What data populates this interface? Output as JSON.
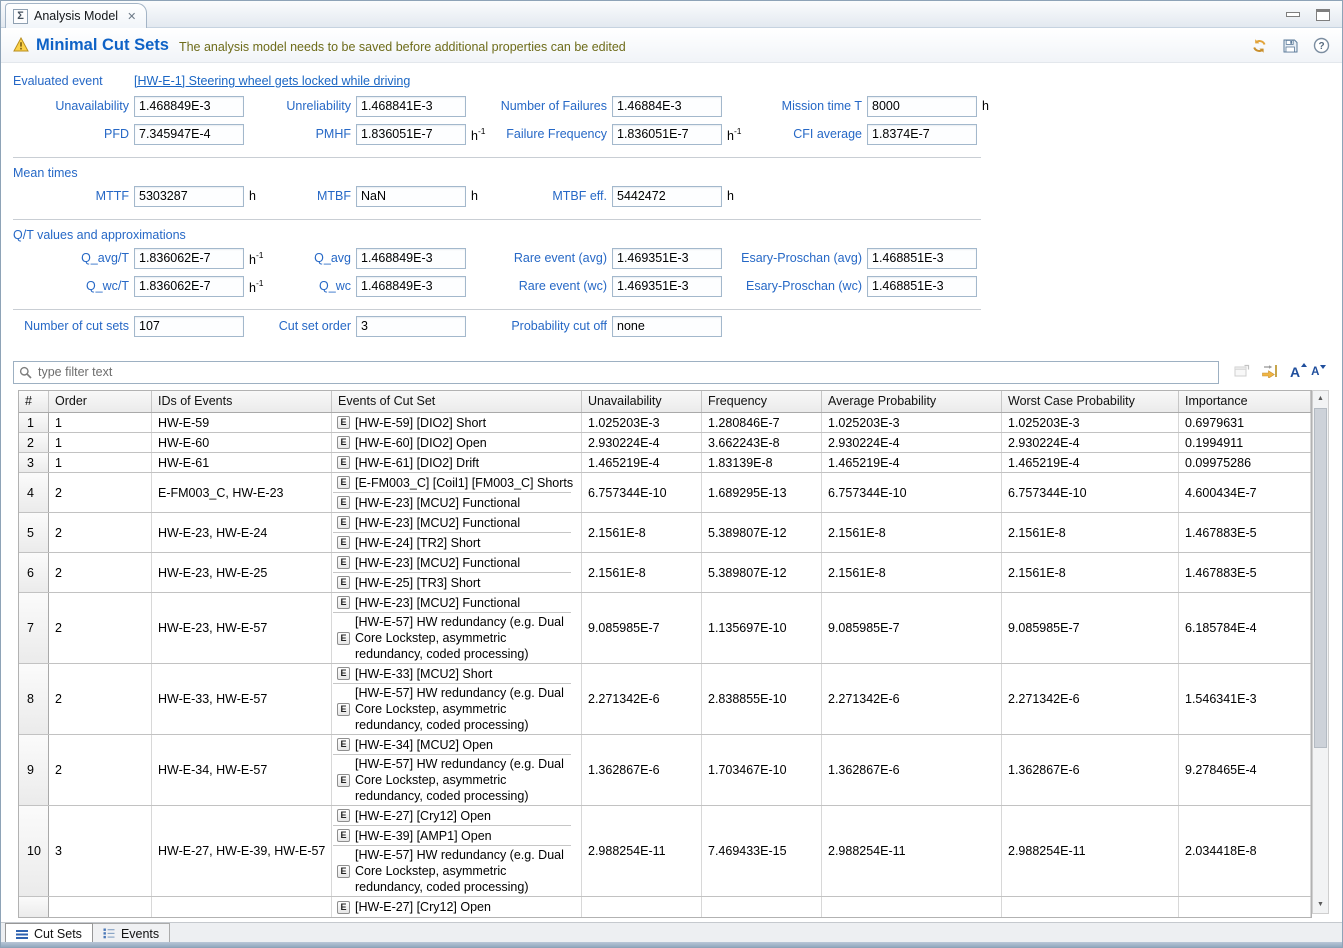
{
  "colors": {
    "accent_blue": "#0e62c6",
    "label_blue": "#2668c6",
    "link_blue": "#1a66c4",
    "warning_text": "#6e6c1a",
    "icon_orange": "#e2a33a"
  },
  "window": {
    "tab_title": "Analysis Model",
    "tab_icon": "Σ",
    "close_glyph": "✕"
  },
  "header": {
    "title": "Minimal Cut Sets",
    "message": "The analysis model needs to be saved before additional properties can be edited",
    "help_glyph": "?"
  },
  "evaluated_event": {
    "label": "Evaluated event",
    "value": "[HW-E-1] Steering wheel gets locked while driving"
  },
  "form": {
    "sections": [
      {
        "title": "",
        "rows": [
          [
            {
              "label": "Unavailability",
              "value": "1.468849E-3",
              "unit": "",
              "sup": ""
            },
            {
              "label": "Unreliability",
              "value": "1.468841E-3",
              "unit": "",
              "sup": ""
            },
            {
              "label": "Number of Failures",
              "value": "1.46884E-3",
              "unit": "",
              "sup": ""
            },
            {
              "label": "Mission time T",
              "value": "8000",
              "unit": "h",
              "sup": ""
            }
          ],
          [
            {
              "label": "PFD",
              "value": "7.345947E-4",
              "unit": "",
              "sup": ""
            },
            {
              "label": "PMHF",
              "value": "1.836051E-7",
              "unit": "h",
              "sup": "-1"
            },
            {
              "label": "Failure Frequency",
              "value": "1.836051E-7",
              "unit": "h",
              "sup": "-1"
            },
            {
              "label": "CFI average",
              "value": "1.8374E-7",
              "unit": "",
              "sup": ""
            }
          ]
        ]
      },
      {
        "title": "Mean times",
        "rows": [
          [
            {
              "label": "MTTF",
              "value": "5303287",
              "unit": "h",
              "sup": ""
            },
            {
              "label": "MTBF",
              "value": "NaN",
              "unit": "h",
              "sup": ""
            },
            {
              "label": "MTBF eff.",
              "value": "5442472",
              "unit": "h",
              "sup": ""
            }
          ]
        ]
      },
      {
        "title": "Q/T values and approximations",
        "rows": [
          [
            {
              "label": "Q_avg/T",
              "value": "1.836062E-7",
              "unit": "h",
              "sup": "-1"
            },
            {
              "label": "Q_avg",
              "value": "1.468849E-3",
              "unit": "",
              "sup": ""
            },
            {
              "label": "Rare event (avg)",
              "value": "1.469351E-3",
              "unit": "",
              "sup": ""
            },
            {
              "label": "Esary-Proschan (avg)",
              "value": "1.468851E-3",
              "unit": "",
              "sup": ""
            }
          ],
          [
            {
              "label": "Q_wc/T",
              "value": "1.836062E-7",
              "unit": "h",
              "sup": "-1"
            },
            {
              "label": "Q_wc",
              "value": "1.468849E-3",
              "unit": "",
              "sup": ""
            },
            {
              "label": "Rare event (wc)",
              "value": "1.469351E-3",
              "unit": "",
              "sup": ""
            },
            {
              "label": "Esary-Proschan (wc)",
              "value": "1.468851E-3",
              "unit": "",
              "sup": ""
            }
          ]
        ]
      },
      {
        "title": "",
        "rows": [
          [
            {
              "label": "Number of cut sets",
              "value": "107",
              "unit": "",
              "sup": ""
            },
            {
              "label": "Cut set order",
              "value": "3",
              "unit": "",
              "sup": ""
            },
            {
              "label": "Probability cut off",
              "value": "none",
              "unit": "",
              "sup": ""
            }
          ]
        ]
      }
    ]
  },
  "filter": {
    "placeholder": "type filter text",
    "font_increase": "A",
    "font_decrease": "A"
  },
  "table": {
    "event_badge": "E",
    "columns": [
      "#",
      "Order",
      "IDs of Events",
      "Events of Cut Set",
      "Unavailability",
      "Frequency",
      "Average Probability",
      "Worst Case Probability",
      "Importance"
    ],
    "rows": [
      {
        "num": "1",
        "order": "1",
        "ids": "HW-E-59",
        "events": [
          "[HW-E-59] [DIO2] Short"
        ],
        "unavailability": "1.025203E-3",
        "frequency": "1.280846E-7",
        "average_probability": "1.025203E-3",
        "worst_case_probability": "1.025203E-3",
        "importance": "0.6979631"
      },
      {
        "num": "2",
        "order": "1",
        "ids": "HW-E-60",
        "events": [
          "[HW-E-60] [DIO2] Open"
        ],
        "unavailability": "2.930224E-4",
        "frequency": "3.662243E-8",
        "average_probability": "2.930224E-4",
        "worst_case_probability": "2.930224E-4",
        "importance": "0.1994911"
      },
      {
        "num": "3",
        "order": "1",
        "ids": "HW-E-61",
        "events": [
          "[HW-E-61] [DIO2] Drift"
        ],
        "unavailability": "1.465219E-4",
        "frequency": "1.83139E-8",
        "average_probability": "1.465219E-4",
        "worst_case_probability": "1.465219E-4",
        "importance": "0.09975286"
      },
      {
        "num": "4",
        "order": "2",
        "ids": "E-FM003_C, HW-E-23",
        "events": [
          "[E-FM003_C] [Coil1] [FM003_C] Shorts",
          "[HW-E-23] [MCU2] Functional"
        ],
        "unavailability": "6.757344E-10",
        "frequency": "1.689295E-13",
        "average_probability": "6.757344E-10",
        "worst_case_probability": "6.757344E-10",
        "importance": "4.600434E-7"
      },
      {
        "num": "5",
        "order": "2",
        "ids": "HW-E-23, HW-E-24",
        "events": [
          "[HW-E-23] [MCU2] Functional",
          "[HW-E-24] [TR2] Short"
        ],
        "unavailability": "2.1561E-8",
        "frequency": "5.389807E-12",
        "average_probability": "2.1561E-8",
        "worst_case_probability": "2.1561E-8",
        "importance": "1.467883E-5"
      },
      {
        "num": "6",
        "order": "2",
        "ids": "HW-E-23, HW-E-25",
        "events": [
          "[HW-E-23] [MCU2] Functional",
          "[HW-E-25] [TR3] Short"
        ],
        "unavailability": "2.1561E-8",
        "frequency": "5.389807E-12",
        "average_probability": "2.1561E-8",
        "worst_case_probability": "2.1561E-8",
        "importance": "1.467883E-5"
      },
      {
        "num": "7",
        "order": "2",
        "ids": "HW-E-23, HW-E-57",
        "events": [
          "[HW-E-23] [MCU2] Functional",
          "[HW-E-57] HW redundancy (e.g. Dual Core Lockstep, asymmetric redundancy, coded processing)"
        ],
        "unavailability": "9.085985E-7",
        "frequency": "1.135697E-10",
        "average_probability": "9.085985E-7",
        "worst_case_probability": "9.085985E-7",
        "importance": "6.185784E-4"
      },
      {
        "num": "8",
        "order": "2",
        "ids": "HW-E-33, HW-E-57",
        "events": [
          "[HW-E-33] [MCU2] Short",
          "[HW-E-57] HW redundancy (e.g. Dual Core Lockstep, asymmetric redundancy, coded processing)"
        ],
        "unavailability": "2.271342E-6",
        "frequency": "2.838855E-10",
        "average_probability": "2.271342E-6",
        "worst_case_probability": "2.271342E-6",
        "importance": "1.546341E-3"
      },
      {
        "num": "9",
        "order": "2",
        "ids": "HW-E-34, HW-E-57",
        "events": [
          "[HW-E-34] [MCU2] Open",
          "[HW-E-57] HW redundancy (e.g. Dual Core Lockstep, asymmetric redundancy, coded processing)"
        ],
        "unavailability": "1.362867E-6",
        "frequency": "1.703467E-10",
        "average_probability": "1.362867E-6",
        "worst_case_probability": "1.362867E-6",
        "importance": "9.278465E-4"
      },
      {
        "num": "10",
        "order": "3",
        "ids": "HW-E-27, HW-E-39, HW-E-57",
        "events": [
          "[HW-E-27] [Cry12] Open",
          "[HW-E-39] [AMP1] Open",
          "[HW-E-57] HW redundancy (e.g. Dual Core Lockstep, asymmetric redundancy, coded processing)"
        ],
        "unavailability": "2.988254E-11",
        "frequency": "7.469433E-15",
        "average_probability": "2.988254E-11",
        "worst_case_probability": "2.988254E-11",
        "importance": "2.034418E-8"
      },
      {
        "num": "",
        "order": "",
        "ids": "",
        "events": [
          "[HW-E-27] [Cry12] Open"
        ],
        "unavailability": "",
        "frequency": "",
        "average_probability": "",
        "worst_case_probability": "",
        "importance": "",
        "partial": true
      }
    ]
  },
  "scrollbar": {
    "up_glyph": "▲",
    "down_glyph": "▼"
  },
  "bottom_tabs": [
    {
      "label": "Cut Sets",
      "selected": true
    },
    {
      "label": "Events",
      "selected": false
    }
  ]
}
